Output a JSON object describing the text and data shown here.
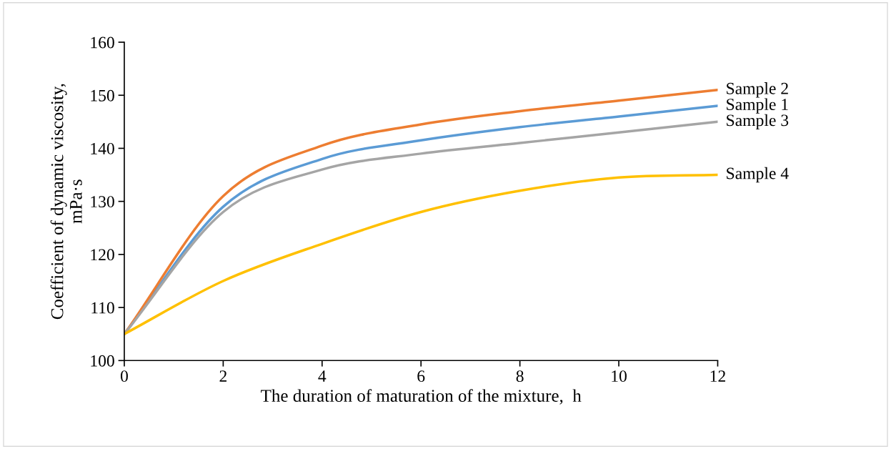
{
  "chart_data": {
    "type": "line",
    "xlabel": "The duration of maturation of the mixture,  h",
    "ylabel": "Coefficient of dynamic viscosity,\nmPa·s",
    "x": [
      0,
      2,
      4,
      6,
      8,
      10,
      12
    ],
    "series": [
      {
        "name": "Sample 1",
        "color": "#5b9bd5",
        "values": [
          105,
          129,
          138,
          141.5,
          144,
          146,
          148
        ]
      },
      {
        "name": "Sample 2",
        "color": "#ed7d31",
        "values": [
          105,
          131,
          140.5,
          144.5,
          147,
          149,
          151
        ]
      },
      {
        "name": "Sample 3",
        "color": "#a5a5a5",
        "values": [
          105,
          128,
          136,
          139,
          141,
          143,
          145
        ]
      },
      {
        "name": "Sample 4",
        "color": "#ffc000",
        "values": [
          105,
          115,
          122,
          128,
          132,
          134.5,
          135
        ]
      }
    ],
    "xlim": [
      0,
      12
    ],
    "xticks": [
      0,
      2,
      4,
      6,
      8,
      10,
      12
    ],
    "ylim": [
      100,
      160
    ],
    "yticks": [
      100,
      110,
      120,
      130,
      140,
      150,
      160
    ],
    "grid": false,
    "legend": false,
    "marker": "none",
    "line_style": "solid"
  }
}
